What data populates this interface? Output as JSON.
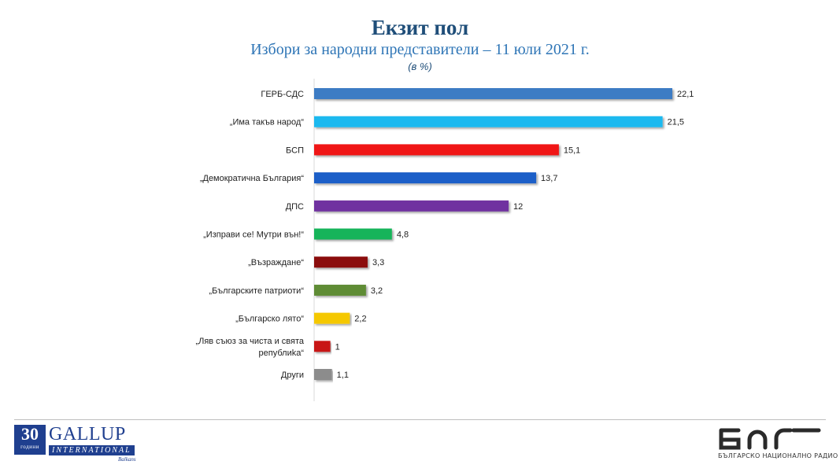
{
  "title": "Екзит пол",
  "subtitle": "Избори за народни представители – 11 юли 2021 г.",
  "unit": "(в %)",
  "colors": {
    "title": "#1f4e79",
    "subtitle": "#2e75b6",
    "axis": "#d9d9d9"
  },
  "chart_data": {
    "type": "bar",
    "orientation": "horizontal",
    "categories": [
      "ГЕРБ-СДС",
      "„Има такъв народ“",
      "БСП",
      "„Демократична България“",
      "ДПС",
      "„Изправи се! Мутри вън!“",
      "„Възраждане“",
      "„Българските патриоти“",
      "„Българско лято“",
      "„Ляв съюз за чиста и свята републиka“",
      "Други"
    ],
    "values": [
      22.1,
      21.5,
      15.1,
      13.7,
      12,
      4.8,
      3.3,
      3.2,
      2.2,
      1,
      1.1
    ],
    "value_labels": [
      "22,1",
      "21,5",
      "15,1",
      "13,7",
      "12",
      "4,8",
      "3,3",
      "3,2",
      "2,2",
      "1",
      "1,1"
    ],
    "colors": [
      "#3e7bc4",
      "#1eb9ef",
      "#f01414",
      "#1e5fc8",
      "#7030a0",
      "#19b45a",
      "#8b1010",
      "#5e8c35",
      "#f5c800",
      "#c81414",
      "#8c8c8c"
    ],
    "xlim": [
      0,
      24
    ],
    "grid": false,
    "legend": "none",
    "xlabel": "",
    "ylabel": ""
  },
  "footer": {
    "gallup_number": "30",
    "gallup_years": "години",
    "gallup_name": "GALLUP",
    "gallup_international": "INTERNATIONAL",
    "gallup_region": "Balkans",
    "bnr_tagline": "БЪЛГАРСКО НАЦИОНАЛНО РАДИО"
  }
}
